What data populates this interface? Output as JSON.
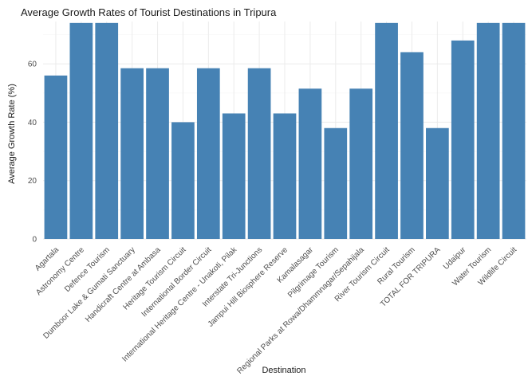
{
  "chart_data": {
    "type": "bar",
    "title": "Average Growth Rates of Tourist Destinations in Tripura",
    "xlabel": "Destination",
    "ylabel": "Average Growth Rate (%)",
    "ylim": [
      0,
      74
    ],
    "yticks": [
      0,
      20,
      40,
      60
    ],
    "grid": true,
    "legend": "none",
    "bar_color": "#4682B4",
    "categories": [
      "Agartala",
      "Astronomy Centre",
      "Defence Tourism",
      "Dumboor Lake & Gumati Sanctuary",
      "Handicraft Centre at Ambasa",
      "Heritage Tourism Circuit",
      "International Border Circuit",
      "International Heritage Centre - Unakoti, Pilak",
      "Interstate Tri-Junctions",
      "Jampui Hill Biosphere Reserve",
      "Kamalasagar",
      "Pilgrimage Tourism",
      "Regional Parks at Rowa/Dhammnagar/Sepahijala",
      "River Tourism Circuit",
      "Rural Tourism",
      "TOTAL FOR TRIPURA",
      "Udaipur",
      "Water Tourism",
      "Wildlife Circuit"
    ],
    "values": [
      56,
      74,
      74,
      58.5,
      58.5,
      40,
      58.5,
      43,
      58.5,
      43,
      51.5,
      38,
      51.5,
      74,
      64,
      38,
      68,
      74,
      74
    ]
  }
}
